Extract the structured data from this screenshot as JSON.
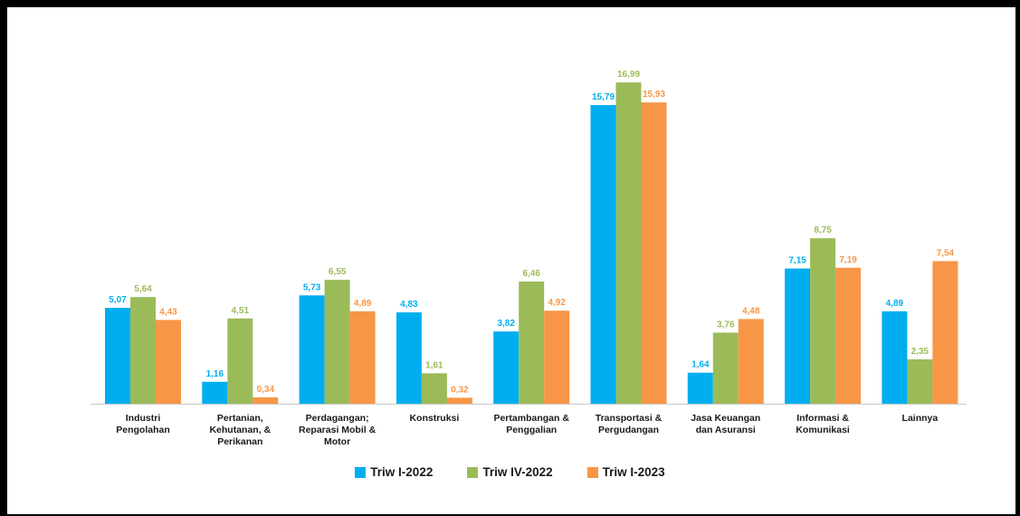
{
  "colors": {
    "series": [
      "#00AEEF",
      "#9BBB59",
      "#F79646"
    ],
    "axis": "#cfcfcf"
  },
  "chart_data": {
    "type": "bar",
    "categories": [
      [
        "Industri",
        "Pengolahan"
      ],
      [
        "Pertanian,",
        "Kehutanan, &",
        "Perikanan"
      ],
      [
        "Perdagangan;",
        "Reparasi Mobil &",
        "Motor"
      ],
      [
        "Konstruksi"
      ],
      [
        "Pertambangan &",
        "Penggalian"
      ],
      [
        "Transportasi &",
        "Pergudangan"
      ],
      [
        "Jasa Keuangan",
        "dan Asuransi"
      ],
      [
        "Informasi &",
        "Komunikasi"
      ],
      [
        "Lainnya"
      ]
    ],
    "series": [
      {
        "name": "Triw I-2022",
        "values": [
          5.07,
          1.16,
          5.73,
          4.83,
          3.82,
          15.79,
          1.64,
          7.15,
          4.89
        ],
        "labels": [
          "5,07",
          "1,16",
          "5,73",
          "4,83",
          "3,82",
          "15,79",
          "1,64",
          "7,15",
          "4,89"
        ]
      },
      {
        "name": "Triw IV-2022",
        "values": [
          5.64,
          4.51,
          6.55,
          1.61,
          6.46,
          16.99,
          3.76,
          8.75,
          2.35
        ],
        "labels": [
          "5,64",
          "4,51",
          "6,55",
          "1,61",
          "6,46",
          "16,99",
          "3,76",
          "8,75",
          "2,35"
        ]
      },
      {
        "name": "Triw I-2023",
        "values": [
          4.43,
          0.34,
          4.89,
          0.32,
          4.92,
          15.93,
          4.48,
          7.19,
          7.54
        ],
        "labels": [
          "4,43",
          "0,34",
          "4,89",
          "0,32",
          "4,92",
          "15,93",
          "4,48",
          "7,19",
          "7,54"
        ]
      }
    ],
    "ylim": [
      0,
      17
    ],
    "grid": false,
    "legend_position": "bottom"
  }
}
